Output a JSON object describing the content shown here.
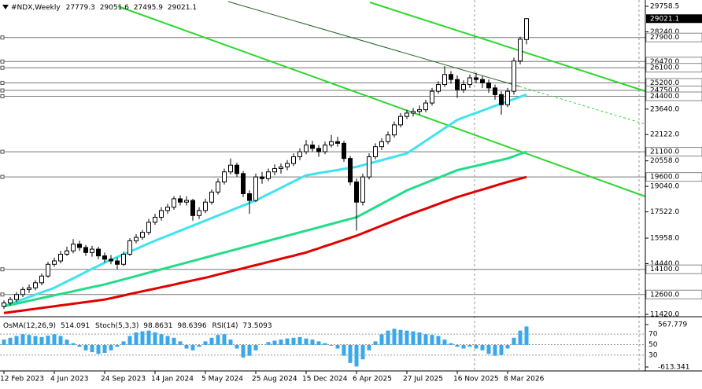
{
  "chart_data": {
    "type": "candlestick",
    "symbol": "#NDX,Weekly",
    "categories": [
      "12 Feb 2023",
      null,
      null,
      null,
      null,
      null,
      null,
      null,
      "4 Jun 2023",
      null,
      null,
      null,
      null,
      null,
      null,
      null,
      "24 Sep 2023",
      null,
      null,
      null,
      null,
      null,
      null,
      null,
      "14 Jan 2024",
      null,
      null,
      null,
      null,
      null,
      null,
      null,
      "5 May 2024",
      null,
      null,
      null,
      null,
      null,
      null,
      null,
      "25 Aug 2024",
      null,
      null,
      null,
      null,
      null,
      null,
      null,
      "15 Dec 2024",
      null,
      null,
      null,
      null,
      null,
      null,
      null,
      "6 Apr 2025",
      null,
      null,
      null,
      null,
      null,
      null,
      null,
      "27 Jul 2025",
      null,
      null,
      null,
      null,
      null,
      null,
      null,
      "16 Nov 2025",
      null,
      null,
      null,
      null,
      null,
      null,
      null,
      "8 Mar 2026",
      null,
      null,
      null
    ],
    "candles": [
      [
        11900,
        12250,
        11750,
        12100
      ],
      [
        12100,
        12450,
        11950,
        12300
      ],
      [
        12300,
        12750,
        12150,
        12600
      ],
      [
        12600,
        13050,
        12450,
        12900
      ],
      [
        12900,
        13200,
        12700,
        13000
      ],
      [
        13000,
        13450,
        12850,
        13300
      ],
      [
        13300,
        13850,
        13150,
        13700
      ],
      [
        13700,
        14550,
        13600,
        14400
      ],
      [
        14400,
        14800,
        14250,
        14600
      ],
      [
        14600,
        15200,
        14450,
        15000
      ],
      [
        15000,
        15450,
        14900,
        15200
      ],
      [
        15200,
        15900,
        15050,
        15600
      ],
      [
        15600,
        15800,
        15200,
        15400
      ],
      [
        15400,
        15550,
        14900,
        15100
      ],
      [
        15100,
        15500,
        14850,
        15300
      ],
      [
        15300,
        15450,
        14700,
        14900
      ],
      [
        14900,
        15100,
        14500,
        14700
      ],
      [
        14700,
        14950,
        14400,
        14600
      ],
      [
        14600,
        14800,
        14100,
        14400
      ],
      [
        14400,
        15150,
        14300,
        15000
      ],
      [
        15000,
        15950,
        14900,
        15800
      ],
      [
        15800,
        16200,
        15650,
        16000
      ],
      [
        16000,
        16450,
        15850,
        16300
      ],
      [
        16300,
        17100,
        16150,
        16900
      ],
      [
        16900,
        17400,
        16750,
        17200
      ],
      [
        17200,
        17800,
        17000,
        17600
      ],
      [
        17600,
        18000,
        17400,
        17800
      ],
      [
        17800,
        18450,
        17650,
        18300
      ],
      [
        18300,
        18500,
        17900,
        18100
      ],
      [
        18100,
        18450,
        17900,
        18200
      ],
      [
        18200,
        18300,
        17000,
        17300
      ],
      [
        17300,
        17800,
        17100,
        17600
      ],
      [
        17600,
        18300,
        17450,
        18100
      ],
      [
        18100,
        18850,
        17950,
        18700
      ],
      [
        18700,
        19500,
        18550,
        19300
      ],
      [
        19300,
        20100,
        19150,
        19900
      ],
      [
        19900,
        20700,
        19750,
        20300
      ],
      [
        20300,
        20450,
        19600,
        19800
      ],
      [
        19800,
        19950,
        18400,
        18600
      ],
      [
        18600,
        18800,
        17400,
        18200
      ],
      [
        18200,
        19800,
        18100,
        19600
      ],
      [
        19600,
        19900,
        19200,
        19500
      ],
      [
        19500,
        20100,
        19350,
        19900
      ],
      [
        19900,
        20350,
        19700,
        20100
      ],
      [
        20100,
        20400,
        19800,
        20200
      ],
      [
        20200,
        20600,
        20000,
        20400
      ],
      [
        20400,
        21000,
        20250,
        20800
      ],
      [
        20800,
        21300,
        20600,
        21100
      ],
      [
        21100,
        21800,
        20950,
        21500
      ],
      [
        21500,
        21750,
        21100,
        21300
      ],
      [
        21300,
        21500,
        20800,
        21100
      ],
      [
        21100,
        21700,
        20950,
        21500
      ],
      [
        21500,
        22100,
        21350,
        21700
      ],
      [
        21700,
        22000,
        21400,
        21600
      ],
      [
        21600,
        21750,
        20500,
        20700
      ],
      [
        20700,
        20850,
        19100,
        19300
      ],
      [
        19300,
        19500,
        16400,
        18100
      ],
      [
        18100,
        19800,
        17900,
        19600
      ],
      [
        19600,
        21000,
        19450,
        20800
      ],
      [
        20800,
        21600,
        20650,
        21400
      ],
      [
        21400,
        21900,
        21200,
        21700
      ],
      [
        21700,
        22300,
        21550,
        22100
      ],
      [
        22100,
        22900,
        21950,
        22700
      ],
      [
        22700,
        23400,
        22550,
        23200
      ],
      [
        23200,
        23600,
        23050,
        23400
      ],
      [
        23400,
        23700,
        23200,
        23500
      ],
      [
        23500,
        23850,
        23300,
        23600
      ],
      [
        23600,
        24200,
        23450,
        24000
      ],
      [
        24000,
        24900,
        23850,
        24700
      ],
      [
        24700,
        25300,
        24550,
        25100
      ],
      [
        25100,
        26200,
        24950,
        25700
      ],
      [
        25700,
        25900,
        25150,
        25400
      ],
      [
        25400,
        25650,
        24300,
        24800
      ],
      [
        24800,
        25350,
        24600,
        25100
      ],
      [
        25100,
        25700,
        24900,
        25500
      ],
      [
        25500,
        25800,
        25200,
        25400
      ],
      [
        25400,
        25600,
        24900,
        25200
      ],
      [
        25200,
        25400,
        24600,
        24900
      ],
      [
        24900,
        25100,
        24200,
        24500
      ],
      [
        24500,
        24700,
        23300,
        23900
      ],
      [
        23900,
        24900,
        23750,
        24700
      ],
      [
        24700,
        26700,
        24500,
        26500
      ],
      [
        26500,
        27950,
        26300,
        27800
      ],
      [
        27779.3,
        29051.6,
        27495.9,
        29021.1
      ]
    ],
    "moving_averages": [
      {
        "color": "#3fe3f0",
        "values": [
          11900,
          12040,
          12180,
          12310,
          12450,
          12590,
          12730,
          12860,
          13000,
          13190,
          13380,
          13560,
          13750,
          13940,
          14130,
          14310,
          14500,
          14660,
          14830,
          14990,
          15150,
          15310,
          15480,
          15640,
          15800,
          15950,
          16100,
          16250,
          16400,
          16550,
          16700,
          16850,
          17000,
          17150,
          17300,
          17450,
          17600,
          17750,
          17900,
          18050,
          18200,
          18390,
          18580,
          18760,
          18950,
          19140,
          19330,
          19510,
          19700,
          19760,
          19830,
          19890,
          19950,
          20010,
          20080,
          20140,
          20200,
          20300,
          20400,
          20500,
          20600,
          20700,
          20800,
          20900,
          21000,
          21250,
          21500,
          21750,
          22000,
          22250,
          22500,
          22750,
          23000,
          23140,
          23280,
          23410,
          23550,
          23690,
          23830,
          23960,
          24100,
          24230,
          24370,
          24500
        ]
      },
      {
        "color": "#22dd88",
        "values": [
          11900,
          11980,
          12060,
          12140,
          12230,
          12310,
          12390,
          12470,
          12550,
          12630,
          12710,
          12790,
          12880,
          12960,
          13040,
          13120,
          13200,
          13300,
          13400,
          13500,
          13600,
          13700,
          13800,
          13900,
          14000,
          14100,
          14200,
          14300,
          14400,
          14500,
          14600,
          14700,
          14800,
          14900,
          15000,
          15100,
          15200,
          15300,
          15400,
          15500,
          15600,
          15700,
          15800,
          15900,
          16000,
          16100,
          16200,
          16300,
          16400,
          16500,
          16600,
          16700,
          16800,
          16900,
          17000,
          17100,
          17200,
          17400,
          17600,
          17800,
          18000,
          18200,
          18400,
          18600,
          18800,
          18950,
          19100,
          19250,
          19400,
          19550,
          19700,
          19850,
          20000,
          20090,
          20180,
          20260,
          20350,
          20440,
          20530,
          20610,
          20700,
          20830,
          20970,
          21100
        ]
      },
      {
        "color": "#e00000",
        "values": [
          11500,
          11550,
          11600,
          11650,
          11700,
          11750,
          11800,
          11850,
          11900,
          11950,
          12000,
          12050,
          12100,
          12150,
          12200,
          12250,
          12300,
          12380,
          12460,
          12540,
          12630,
          12710,
          12790,
          12870,
          12950,
          13030,
          13110,
          13190,
          13280,
          13360,
          13440,
          13520,
          13600,
          13690,
          13790,
          13880,
          13980,
          14070,
          14160,
          14260,
          14350,
          14440,
          14540,
          14630,
          14730,
          14820,
          14910,
          15010,
          15100,
          15230,
          15350,
          15480,
          15600,
          15730,
          15850,
          15980,
          16100,
          16250,
          16400,
          16550,
          16700,
          16850,
          17000,
          17150,
          17300,
          17440,
          17580,
          17710,
          17850,
          17990,
          18130,
          18260,
          18400,
          18510,
          18630,
          18740,
          18850,
          18960,
          19080,
          19190,
          19300,
          19400,
          19500,
          19600
        ]
      }
    ],
    "ylim": [
      11420,
      29758.5
    ],
    "yticks": [
      {
        "value": 29758.5,
        "label": "29758.5"
      },
      {
        "value": 28240,
        "label": "28240.0"
      },
      {
        "value": 23640,
        "label": "23640.0"
      },
      {
        "value": 22122,
        "label": "22122.0"
      },
      {
        "value": 20558,
        "label": "20558.0"
      },
      {
        "value": 19040,
        "label": "19040.0"
      },
      {
        "value": 17522,
        "label": "17522.0"
      },
      {
        "value": 15958,
        "label": "15958.0"
      },
      {
        "value": 14440,
        "label": "14440.0"
      },
      {
        "value": 11420,
        "label": "11420.0"
      }
    ],
    "levels": [
      {
        "value": 27900,
        "label": "27900.0"
      },
      {
        "value": 26470,
        "label": "26470.0"
      },
      {
        "value": 26100,
        "label": "26100.0"
      },
      {
        "value": 25200,
        "label": "25200.0"
      },
      {
        "value": 24750,
        "label": "24750.0"
      },
      {
        "value": 24400,
        "label": "24400.0"
      },
      {
        "value": 21100,
        "label": "21100.0"
      },
      {
        "value": 19600,
        "label": "19600.0"
      },
      {
        "value": 14100,
        "label": "14100.0"
      },
      {
        "value": 12600,
        "label": "12600.0"
      }
    ],
    "indicators": {
      "osma_name": "OsMA(12,26,9)",
      "osma_color": "#3aa8e8",
      "osma": [
        150,
        200,
        250,
        300,
        280,
        250,
        220,
        260,
        300,
        250,
        150,
        50,
        -50,
        -150,
        -200,
        -250,
        -220,
        -150,
        -50,
        100,
        250,
        350,
        380,
        400,
        350,
        300,
        250,
        200,
        100,
        -100,
        -150,
        -50,
        100,
        200,
        280,
        300,
        150,
        -100,
        -350,
        -300,
        -150,
        0,
        80,
        120,
        150,
        180,
        200,
        220,
        180,
        150,
        100,
        50,
        -20,
        -100,
        -300,
        -500,
        -600,
        -400,
        -150,
        100,
        300,
        400,
        450,
        420,
        400,
        380,
        350,
        300,
        280,
        250,
        150,
        50,
        -50,
        -100,
        -50,
        -100,
        -150,
        -250,
        -300,
        -280,
        -100,
        200,
        400,
        514.091
      ],
      "osma_ylim": [
        -613.341,
        567.779
      ],
      "osma_ticks": [
        {
          "value": 567.779,
          "label": "567.779"
        },
        {
          "value": -613.341,
          "label": "-613.341"
        }
      ],
      "stoch_name": "Stoch(5,3,3)",
      "stoch_values": [
        98.8631,
        98.6396
      ],
      "rsi_name": "RSI(14)",
      "rsi_value": 73.5093,
      "osc_ylim": [
        0,
        100
      ],
      "osc_ticks": [
        70,
        50,
        30
      ]
    }
  }
}
